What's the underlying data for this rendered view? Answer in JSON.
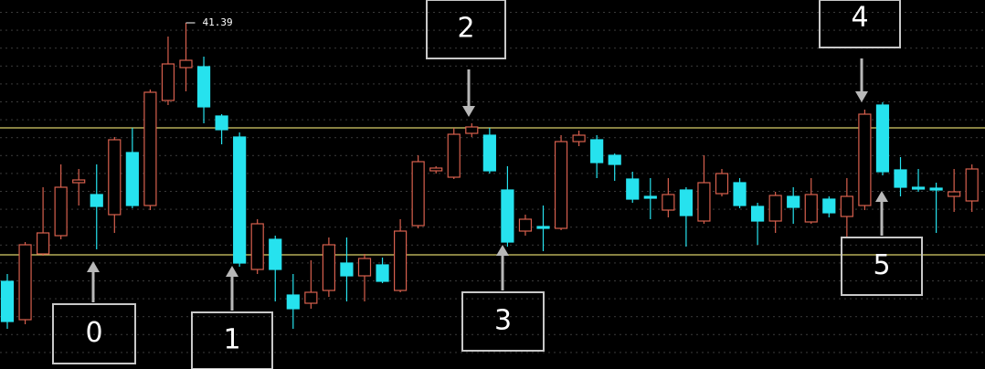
{
  "chart_data": {
    "type": "candlestick",
    "open": [
      32.9,
      31.64,
      33.8,
      34.4,
      36.14,
      35.75,
      35.09,
      37.13,
      35.39,
      38.84,
      39.92,
      39.95,
      38.33,
      37.64,
      33.29,
      34.28,
      32.45,
      32.18,
      32.6,
      33.5,
      33.08,
      33.44,
      32.6,
      34.73,
      36.53,
      36.32,
      37.76,
      37.7,
      35.9,
      34.55,
      34.7,
      34.64,
      37.49,
      37.55,
      37.04,
      36.26,
      35.69,
      35.24,
      35.9,
      34.88,
      35.78,
      36.14,
      35.36,
      34.88,
      35.69,
      34.85,
      35.6,
      35.03,
      35.39,
      38.69,
      36.56,
      35.99,
      35.96,
      35.69,
      35.54
    ],
    "high": [
      33.14,
      34.19,
      35.99,
      36.74,
      36.59,
      36.74,
      37.64,
      37.94,
      39.2,
      40.94,
      41.39,
      40.28,
      38.39,
      37.79,
      34.94,
      34.4,
      33.14,
      33.59,
      34.34,
      34.34,
      33.8,
      33.68,
      34.94,
      37.04,
      36.68,
      37.94,
      38.09,
      37.94,
      36.68,
      35.09,
      35.39,
      37.7,
      37.85,
      37.7,
      37.1,
      36.5,
      36.29,
      36.29,
      35.99,
      37.04,
      36.59,
      36.29,
      35.48,
      35.84,
      35.99,
      36.29,
      35.69,
      36.29,
      38.54,
      38.78,
      36.98,
      36.59,
      36.14,
      36.59,
      36.74
    ],
    "low": [
      31.34,
      31.49,
      33.74,
      34.28,
      35.39,
      33.95,
      34.49,
      35.3,
      35.24,
      38.69,
      39.14,
      38.09,
      37.4,
      33.38,
      33.14,
      32.24,
      31.34,
      32.0,
      32.39,
      32.24,
      32.24,
      32.84,
      32.54,
      34.64,
      36.44,
      36.26,
      37.64,
      36.44,
      34.04,
      34.4,
      33.89,
      34.58,
      37.34,
      36.29,
      36.2,
      35.48,
      34.94,
      35.0,
      34.04,
      34.79,
      35.69,
      35.3,
      34.1,
      34.49,
      34.79,
      34.79,
      35.0,
      34.34,
      35.24,
      36.38,
      35.69,
      35.84,
      34.49,
      35.18,
      35.18
    ],
    "close": [
      31.58,
      34.1,
      34.49,
      35.99,
      36.23,
      35.36,
      37.55,
      35.39,
      39.11,
      40.04,
      40.16,
      38.63,
      37.88,
      33.5,
      34.79,
      33.29,
      32.0,
      32.54,
      34.1,
      33.08,
      33.65,
      32.9,
      34.55,
      36.83,
      36.62,
      37.73,
      37.97,
      36.53,
      34.19,
      34.94,
      34.64,
      37.49,
      37.7,
      36.8,
      36.74,
      35.6,
      35.63,
      35.75,
      35.06,
      36.14,
      36.44,
      35.39,
      34.88,
      35.72,
      35.33,
      35.75,
      35.15,
      35.69,
      38.39,
      36.5,
      35.99,
      35.93,
      35.9,
      35.84,
      36.59
    ],
    "up_color": "#d8604e",
    "down_color": "#26e2ee",
    "ylim": [
      30.02,
      42.14
    ],
    "reference_lines": {
      "values": [
        37.94,
        33.77
      ],
      "color": "#d9cf6a"
    },
    "annotation": "41.39",
    "callouts": [
      "0",
      "1",
      "2",
      "3",
      "4",
      "5"
    ]
  }
}
